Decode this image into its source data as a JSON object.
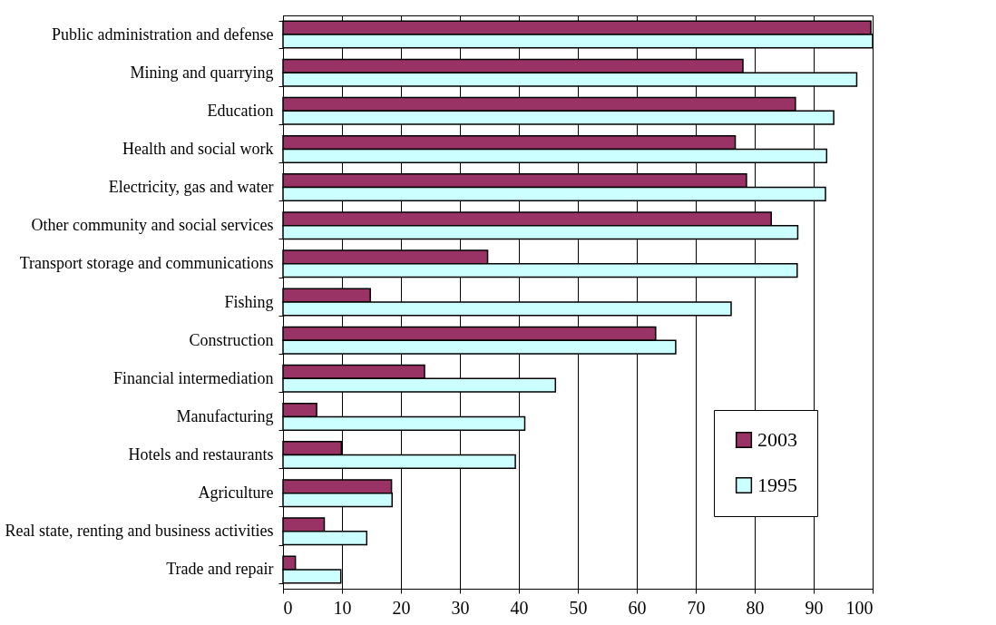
{
  "chart_data": {
    "type": "bar",
    "orientation": "horizontal",
    "categories": [
      "Public administration and defense",
      "Mining and quarrying",
      "Education",
      "Health and social work",
      "Electricity, gas and water",
      "Other community and social services ",
      "Transport  storage and communications",
      "Fishing",
      "Construction",
      "Financial intermediation",
      "Manufacturing",
      "Hotels and restaurants",
      "Agriculture",
      "Real state, renting and business activities",
      "Trade and repair"
    ],
    "series": [
      {
        "name": "2003",
        "color": "#993366",
        "values": [
          99.7,
          78.0,
          86.9,
          76.7,
          78.6,
          82.8,
          34.7,
          14.8,
          63.2,
          24.0,
          5.7,
          9.9,
          18.4,
          7.0,
          2.1
        ]
      },
      {
        "name": "1995",
        "color": "#ccffff",
        "values": [
          100,
          97.3,
          93.4,
          92.2,
          92.0,
          87.3,
          87.2,
          76.0,
          66.6,
          46.2,
          41.0,
          39.4,
          18.5,
          14.2,
          9.8
        ]
      }
    ],
    "xlim": [
      0,
      100
    ],
    "xticks": [
      0,
      10,
      20,
      30,
      40,
      50,
      60,
      70,
      80,
      90,
      100
    ],
    "grid": "x",
    "legend": "right"
  }
}
